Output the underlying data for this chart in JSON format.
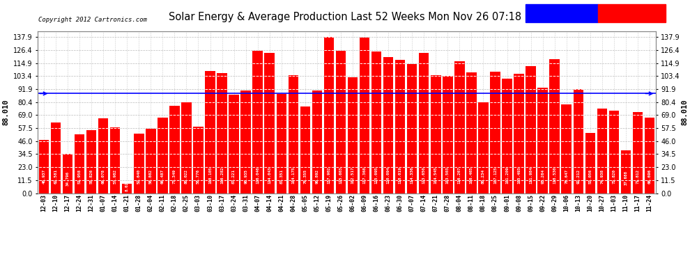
{
  "title": "Solar Energy & Average Production Last 52 Weeks Mon Nov 26 07:18",
  "copyright": "Copyright 2012 Cartronics.com",
  "average_value": 88.01,
  "bar_color": "#FF0000",
  "average_line_color": "#0000FF",
  "background_color": "#FFFFFF",
  "plot_bg_color": "#FFFFFF",
  "grid_color": "#AAAAAA",
  "yticks": [
    0.0,
    11.5,
    23.0,
    34.5,
    46.0,
    57.5,
    69.0,
    80.4,
    91.9,
    103.4,
    114.9,
    126.4,
    137.9
  ],
  "ylim": [
    0,
    143
  ],
  "categories": [
    "12-03",
    "12-10",
    "12-17",
    "12-24",
    "12-31",
    "01-07",
    "01-14",
    "01-21",
    "01-28",
    "02-04",
    "02-11",
    "02-18",
    "02-25",
    "03-03",
    "03-10",
    "03-17",
    "03-24",
    "03-31",
    "04-07",
    "04-14",
    "04-21",
    "04-28",
    "05-05",
    "05-12",
    "05-19",
    "05-26",
    "06-02",
    "06-09",
    "06-16",
    "06-23",
    "06-30",
    "07-07",
    "07-14",
    "07-21",
    "07-28",
    "08-04",
    "08-11",
    "08-18",
    "08-25",
    "09-01",
    "09-08",
    "09-15",
    "09-22",
    "09-29",
    "10-06",
    "10-13",
    "10-20",
    "10-27",
    "11-03",
    "11-10",
    "11-17",
    "11-24"
  ],
  "values": [
    46.937,
    62.581,
    34.796,
    51.958,
    55.826,
    66.078,
    57.982,
    8.022,
    52.64,
    56.802,
    66.487,
    77.349,
    80.022,
    58.776,
    108.105,
    106.282,
    87.221,
    90.935,
    126.046,
    124.043,
    87.351,
    104.175,
    76.355,
    90.892,
    137.902,
    125.603,
    102.517,
    137.368,
    125.095,
    120.094,
    118.019,
    114.336,
    123.65,
    104.545,
    103.503,
    116.267,
    106.465,
    80.234,
    107.125,
    101.209,
    105.493,
    111.984,
    93.264,
    118.53,
    78.647,
    92.212,
    53.056,
    74.938,
    72.82,
    37.688,
    71.812,
    66.696
  ],
  "ytick_labels": [
    "0.0",
    "11.5",
    "23.0",
    "34.5",
    "46.0",
    "57.5",
    "69.0",
    "80.4",
    "91.9",
    "103.4",
    "114.9",
    "126.4",
    "137.9"
  ]
}
